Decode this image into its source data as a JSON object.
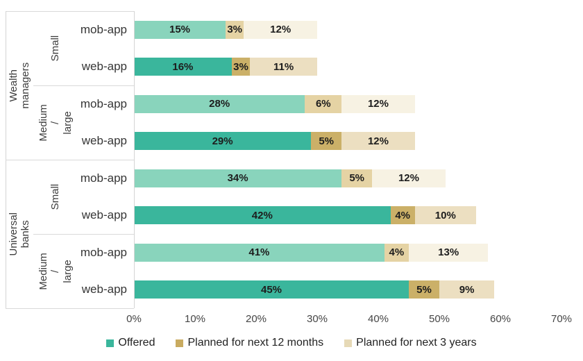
{
  "chart_data": {
    "type": "bar",
    "orientation": "horizontal",
    "stacked": true,
    "x_axis": {
      "min": 0,
      "max": 70,
      "ticks": [
        "0%",
        "10%",
        "20%",
        "30%",
        "40%",
        "50%",
        "60%",
        "70%"
      ]
    },
    "series": [
      {
        "name": "Offered",
        "color_mob": "#89d4bc",
        "color_web": "#3ab69c"
      },
      {
        "name": "Planned for next 12 months",
        "color_mob": "#e5d3a4",
        "color_web": "#cbb068"
      },
      {
        "name": "Planned for next 3 years",
        "color_mob": "#f7f2e3",
        "color_web": "#ecdfc1"
      }
    ],
    "legend": [
      {
        "label": "Offered",
        "color": "#3ab69c"
      },
      {
        "label": "Planned for next 12 months",
        "color": "#c9ab60"
      },
      {
        "label": "Planned for next 3 years",
        "color": "#e6d9b6"
      }
    ],
    "sectors": [
      {
        "name": "Wealth managers",
        "sizes": [
          {
            "name": "Small",
            "bars": [
              {
                "app": "mob-app",
                "values": [
                  15,
                  3,
                  12
                ],
                "labels": [
                  "15%",
                  "3%",
                  "12%"
                ]
              },
              {
                "app": "web-app",
                "values": [
                  16,
                  3,
                  11
                ],
                "labels": [
                  "16%",
                  "3%",
                  "11%"
                ]
              }
            ]
          },
          {
            "name": "Medium /\nlarge",
            "bars": [
              {
                "app": "mob-app",
                "values": [
                  28,
                  6,
                  12
                ],
                "labels": [
                  "28%",
                  "6%",
                  "12%"
                ]
              },
              {
                "app": "web-app",
                "values": [
                  29,
                  5,
                  12
                ],
                "labels": [
                  "29%",
                  "5%",
                  "12%"
                ]
              }
            ]
          }
        ]
      },
      {
        "name": "Universal banks",
        "sizes": [
          {
            "name": "Small",
            "bars": [
              {
                "app": "mob-app",
                "values": [
                  34,
                  5,
                  12
                ],
                "labels": [
                  "34%",
                  "5%",
                  "12%"
                ]
              },
              {
                "app": "web-app",
                "values": [
                  42,
                  4,
                  10
                ],
                "labels": [
                  "42%",
                  "4%",
                  "10%"
                ]
              }
            ]
          },
          {
            "name": "Medium /\nlarge",
            "bars": [
              {
                "app": "mob-app",
                "values": [
                  41,
                  4,
                  13
                ],
                "labels": [
                  "41%",
                  "4%",
                  "13%"
                ]
              },
              {
                "app": "web-app",
                "values": [
                  45,
                  5,
                  9
                ],
                "labels": [
                  "45%",
                  "5%",
                  "9%"
                ]
              }
            ]
          }
        ]
      }
    ]
  }
}
